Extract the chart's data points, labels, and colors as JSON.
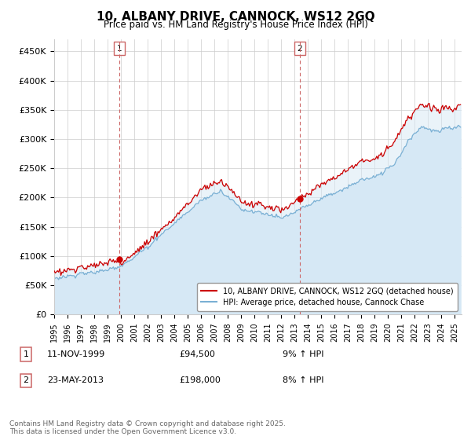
{
  "title": "10, ALBANY DRIVE, CANNOCK, WS12 2GQ",
  "subtitle": "Price paid vs. HM Land Registry's House Price Index (HPI)",
  "ylabel_ticks": [
    "£0",
    "£50K",
    "£100K",
    "£150K",
    "£200K",
    "£250K",
    "£300K",
    "£350K",
    "£400K",
    "£450K"
  ],
  "ytick_values": [
    0,
    50000,
    100000,
    150000,
    200000,
    250000,
    300000,
    350000,
    400000,
    450000
  ],
  "ylim": [
    0,
    470000
  ],
  "xlim_start": 1995.0,
  "xlim_end": 2025.5,
  "purchase1_price": 94500,
  "purchase1_year": 1999.87,
  "purchase2_price": 198000,
  "purchase2_year": 2013.39,
  "legend_line1": "10, ALBANY DRIVE, CANNOCK, WS12 2GQ (detached house)",
  "legend_line2": "HPI: Average price, detached house, Cannock Chase",
  "footer": "Contains HM Land Registry data © Crown copyright and database right 2025.\nThis data is licensed under the Open Government Licence v3.0.",
  "line_color_property": "#cc0000",
  "line_color_hpi": "#7ab0d4",
  "fill_color_hpi": "#d6e8f5",
  "marker_color": "#cc0000",
  "dashed_color": "#cc6666",
  "bg_color": "#ffffff",
  "grid_color": "#cccccc",
  "table_rows": [
    {
      "label": "1",
      "date": "11-NOV-1999",
      "price": "£94,500",
      "hpi": "9% ↑ HPI"
    },
    {
      "label": "2",
      "date": "23-MAY-2013",
      "price": "£198,000",
      "hpi": "8% ↑ HPI"
    }
  ]
}
